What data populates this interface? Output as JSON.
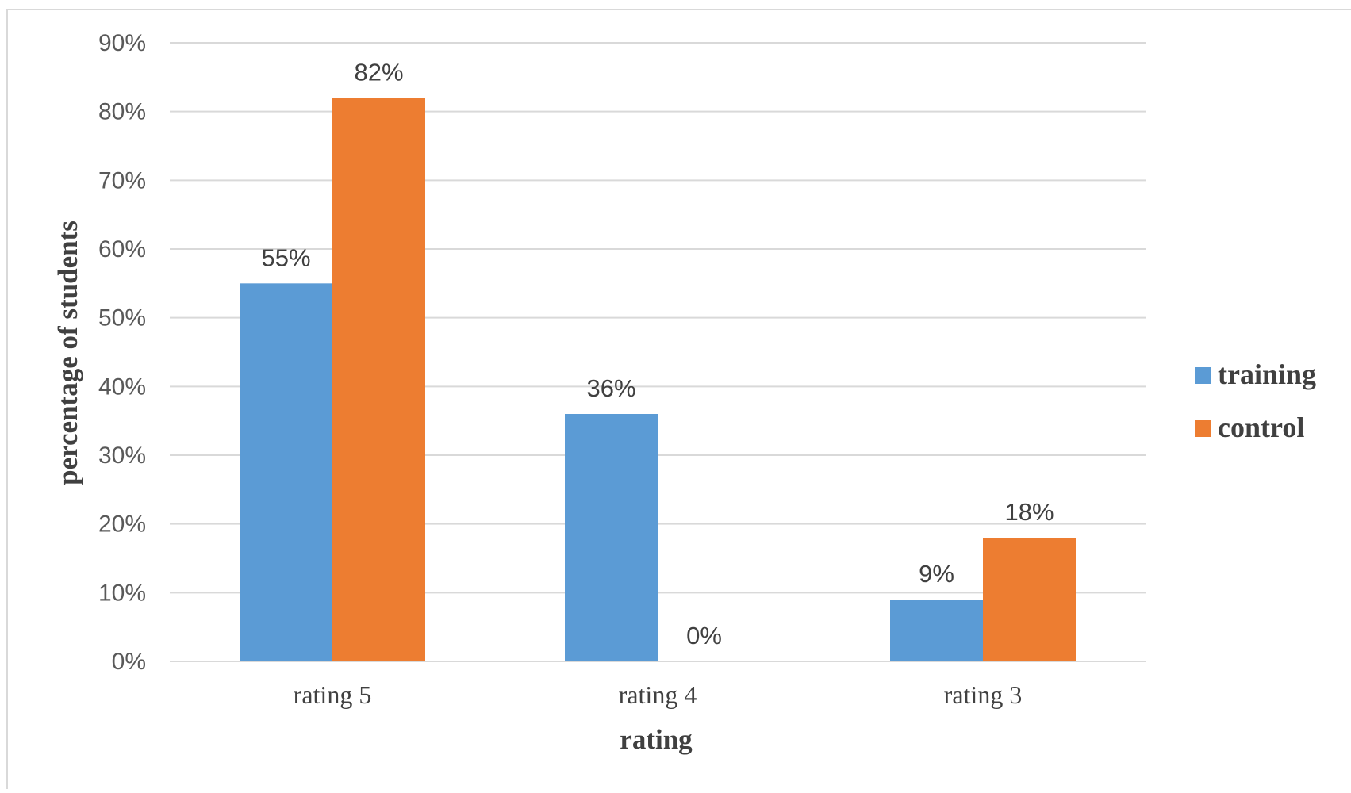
{
  "chart_data": {
    "type": "bar",
    "categories": [
      "rating 5",
      "rating 4",
      "rating 3"
    ],
    "series": [
      {
        "name": "training",
        "values": [
          55,
          36,
          9
        ],
        "labels": [
          "55%",
          "36%",
          "9%"
        ],
        "color": "#5b9bd5"
      },
      {
        "name": "control",
        "values": [
          82,
          0,
          18
        ],
        "labels": [
          "82%",
          "0%",
          "18%"
        ],
        "color": "#ed7d31"
      }
    ],
    "xlabel": "rating",
    "ylabel": "percentage of students",
    "ylim": [
      0,
      90
    ],
    "yticks": [
      0,
      10,
      20,
      30,
      40,
      50,
      60,
      70,
      80,
      90
    ],
    "ytick_labels": [
      "0%",
      "10%",
      "20%",
      "30%",
      "40%",
      "50%",
      "60%",
      "70%",
      "80%",
      "90%"
    ],
    "grid": true,
    "legend_position": "right",
    "colors": {
      "gridline": "#d9d9d9",
      "frame": "#d9d9d9"
    }
  }
}
